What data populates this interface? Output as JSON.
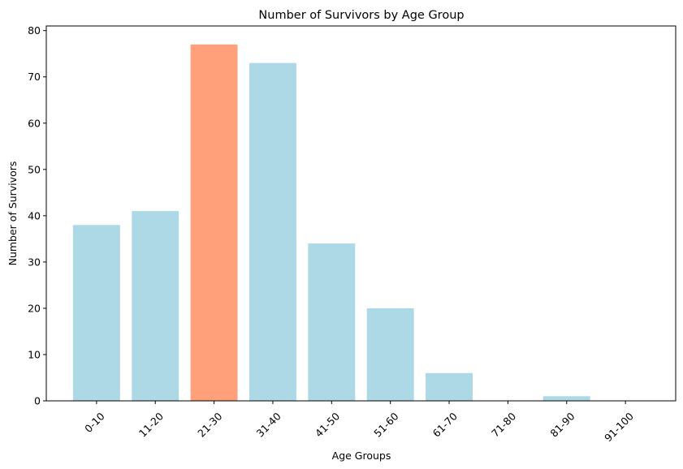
{
  "chart_data": {
    "type": "bar",
    "title": "Number of Survivors by Age Group",
    "xlabel": "Age Groups",
    "ylabel": "Number of Survivors",
    "categories": [
      "0-10",
      "11-20",
      "21-30",
      "31-40",
      "41-50",
      "51-60",
      "61-70",
      "71-80",
      "81-90",
      "91-100"
    ],
    "values": [
      38,
      41,
      77,
      73,
      34,
      20,
      6,
      0,
      1,
      0
    ],
    "highlight_index": 2,
    "ylim": [
      0,
      81
    ],
    "yticks": [
      0,
      10,
      20,
      30,
      40,
      50,
      60,
      70,
      80
    ],
    "xtick_rotation": 45,
    "grid": false,
    "colors": {
      "bar": "#add8e6",
      "highlight": "#ffa07a",
      "axis": "#000000"
    }
  }
}
